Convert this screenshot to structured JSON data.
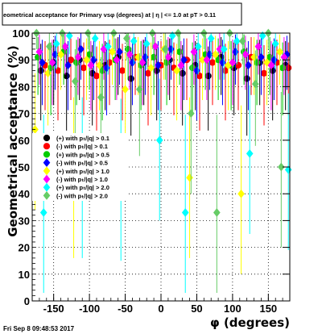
{
  "chart_data": {
    "type": "scatter",
    "title": "eometrical acceptance for Primary vsφ (degrees) at | η | <= 1.0 at pT > 0.11",
    "xlabel": "φ (degrees)",
    "ylabel": "Geometrical acceptance (%)",
    "xlim": [
      -180,
      180
    ],
    "ylim": [
      0,
      100
    ],
    "xticks": [
      -150,
      -100,
      -50,
      0,
      50,
      100,
      150
    ],
    "yticks": [
      0,
      10,
      20,
      30,
      40,
      50,
      60,
      70,
      80,
      90,
      100
    ],
    "grid": true,
    "legend_position": "middle-left",
    "series": [
      {
        "name": "(+) with pₜ/|q| > 0.1",
        "color": "#000000",
        "marker": "circle",
        "x": [
          -168,
          -150,
          -132,
          -114,
          -96,
          -78,
          -60,
          -42,
          -24,
          -6,
          12,
          30,
          48,
          66,
          84,
          102,
          120,
          138,
          156,
          174
        ],
        "y": [
          86,
          89,
          84,
          90,
          85,
          88,
          91,
          83,
          89,
          86,
          90,
          85,
          88,
          84,
          91,
          87,
          83,
          89,
          86,
          88
        ]
      },
      {
        "name": "(-) with pₜ/|q| > 0.1",
        "color": "#ff0000",
        "marker": "circle",
        "x": [
          -162,
          -144,
          -126,
          -108,
          -90,
          -72,
          -54,
          -36,
          -18,
          0,
          18,
          36,
          54,
          72,
          90,
          108,
          126,
          144,
          162,
          178
        ],
        "y": [
          88,
          86,
          90,
          87,
          84,
          89,
          86,
          91,
          85,
          88,
          87,
          90,
          84,
          89,
          86,
          88,
          91,
          85,
          89,
          87
        ]
      },
      {
        "name": "(+) with pₜ/|q| > 0.5",
        "color": "#00cc00",
        "marker": "circle",
        "x": [
          -172,
          -154,
          -136,
          -118,
          -100,
          -82,
          -64,
          -46,
          -28,
          -10,
          8,
          26,
          44,
          62,
          80,
          98,
          116,
          134,
          152,
          170
        ],
        "y": [
          91,
          87,
          93,
          89,
          92,
          86,
          90,
          94,
          88,
          91,
          89,
          93,
          87,
          92,
          90,
          88,
          93,
          89,
          91,
          87
        ]
      },
      {
        "name": "(-) with pₜ/|q| > 0.5",
        "color": "#0000ff",
        "marker": "diamond",
        "x": [
          -166,
          -148,
          -130,
          -112,
          -94,
          -76,
          -58,
          -40,
          -22,
          -4,
          14,
          32,
          50,
          68,
          86,
          104,
          122,
          140,
          158,
          176
        ],
        "y": [
          89,
          92,
          88,
          94,
          90,
          87,
          93,
          89,
          91,
          88,
          94,
          90,
          86,
          92,
          89,
          93,
          88,
          91,
          90,
          92
        ]
      },
      {
        "name": "(+) with pₜ/|q| > 1.0",
        "color": "#ffff00",
        "marker": "diamond",
        "x": [
          -176,
          -158,
          -140,
          -122,
          -104,
          -86,
          -68,
          -50,
          -32,
          -14,
          4,
          22,
          40,
          58,
          76,
          94,
          112,
          130,
          148,
          166
        ],
        "y": [
          64,
          85,
          92,
          46,
          90,
          88,
          93,
          79,
          91,
          87,
          94,
          86,
          46,
          90,
          92,
          88,
          40,
          91,
          89,
          93
        ]
      },
      {
        "name": "(-) with pₜ/|q| > 1.0",
        "color": "#ff00ff",
        "marker": "diamond",
        "x": [
          -170,
          -152,
          -134,
          -116,
          -98,
          -80,
          -62,
          -44,
          -26,
          -8,
          10,
          28,
          46,
          64,
          82,
          100,
          118,
          136,
          154,
          172
        ],
        "y": [
          93,
          89,
          95,
          91,
          88,
          94,
          90,
          92,
          89,
          95,
          91,
          88,
          93,
          90,
          94,
          89,
          92,
          95,
          88,
          91
        ]
      },
      {
        "name": "(+) with pₜ/|q| > 2.0",
        "color": "#00ffff",
        "marker": "diamond",
        "x": [
          -164,
          -146,
          -128,
          -110,
          -92,
          -74,
          -56,
          -38,
          -20,
          -2,
          16,
          34,
          52,
          70,
          88,
          106,
          124,
          142,
          160,
          178
        ],
        "y": [
          33,
          96,
          99,
          46,
          98,
          95,
          45,
          97,
          96,
          60,
          99,
          33,
          95,
          98,
          94,
          97,
          55,
          99,
          96,
          49
        ]
      },
      {
        "name": "(-) with pₜ/|q| > 2.0",
        "color": "#66cc66",
        "marker": "diamond",
        "x": [
          -174,
          -156,
          -138,
          -120,
          -102,
          -84,
          -66,
          -48,
          -30,
          -12,
          6,
          24,
          42,
          60,
          78,
          96,
          114,
          132,
          150,
          168
        ],
        "y": [
          100,
          95,
          100,
          82,
          100,
          76,
          100,
          98,
          79,
          100,
          94,
          100,
          70,
          100,
          33,
          100,
          97,
          81,
          100,
          50
        ]
      }
    ]
  },
  "footer": {
    "timestamp": "Fri Sep  8 09:48:53 2017"
  }
}
